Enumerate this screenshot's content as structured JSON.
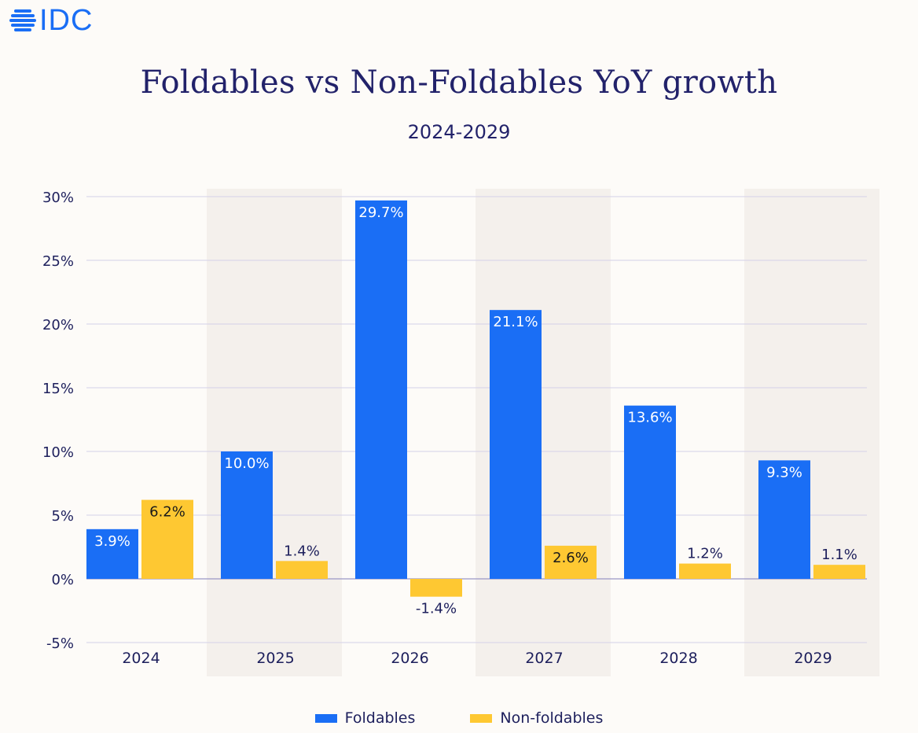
{
  "logo": {
    "text": "IDC"
  },
  "title": "Foldables vs Non-Foldables YoY growth",
  "subtitle": "2024-2029",
  "colors": {
    "foldables": "#1a6ef5",
    "nonfoldables": "#fec832",
    "band": "#f4f0ec",
    "grid": "#d4d1e8",
    "text": "#1d1f5c"
  },
  "chart_data": {
    "type": "bar",
    "categories": [
      "2024",
      "2025",
      "2026",
      "2027",
      "2028",
      "2029"
    ],
    "series": [
      {
        "name": "Foldables",
        "values": [
          3.9,
          10.0,
          29.7,
          21.1,
          13.6,
          9.3
        ],
        "labels": [
          "3.9%",
          "10.0%",
          "29.7%",
          "21.1%",
          "13.6%",
          "9.3%"
        ]
      },
      {
        "name": "Non-foldables",
        "values": [
          6.2,
          1.4,
          -1.4,
          2.6,
          1.2,
          1.1
        ],
        "labels": [
          "6.2%",
          "1.4%",
          "-1.4%",
          "2.6%",
          "1.2%",
          "1.1%"
        ]
      }
    ],
    "yticks": [
      "30%",
      "25%",
      "20%",
      "15%",
      "10%",
      "5%",
      "0%",
      "-5%"
    ],
    "ytick_values": [
      30,
      25,
      20,
      15,
      10,
      5,
      0,
      -5
    ],
    "ylim": [
      -5,
      30
    ],
    "grid": true,
    "legend_position": "bottom-center"
  }
}
